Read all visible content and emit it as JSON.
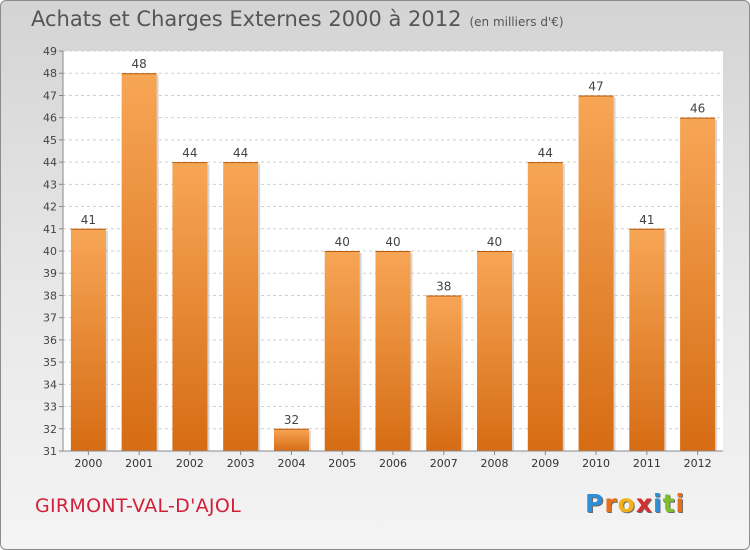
{
  "title": "Achats et Charges Externes 2000 à 2012",
  "unit": "(en milliers d'€)",
  "commune": "GIRMONT-VAL-D'AJOL",
  "logo": {
    "letters": [
      "P",
      "r",
      "o",
      "x",
      "i",
      "t",
      "i"
    ],
    "colors": [
      "#2e8fd8",
      "#e8701a",
      "#f2b21a",
      "#d62f2f",
      "#2e8fd8",
      "#7fbf2a",
      "#e8701a"
    ]
  },
  "colors": {
    "bar": "#f0903a",
    "title": "#555555",
    "commune": "#d2203a"
  },
  "chart_data": {
    "type": "bar",
    "categories": [
      "2000",
      "2001",
      "2002",
      "2003",
      "2004",
      "2005",
      "2006",
      "2007",
      "2008",
      "2009",
      "2010",
      "2011",
      "2012"
    ],
    "values": [
      41,
      48,
      44,
      44,
      32,
      40,
      40,
      38,
      40,
      44,
      47,
      41,
      46
    ],
    "ylim": [
      31,
      49
    ],
    "yticks": [
      "31",
      "32",
      "33",
      "34",
      "35",
      "36",
      "37",
      "38",
      "39",
      "40",
      "41",
      "42",
      "43",
      "44",
      "45",
      "46",
      "47",
      "48",
      "49"
    ],
    "grid": true
  }
}
